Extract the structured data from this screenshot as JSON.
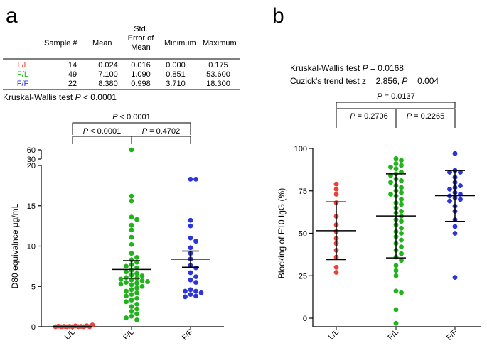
{
  "panel_a": {
    "letter": "a",
    "table": {
      "headers": [
        "",
        "Sample #",
        "Mean",
        "Std.\nError of\nMean",
        "Minimum",
        "Maximum"
      ],
      "rows": [
        {
          "label": "L/L",
          "color": "#e8413a",
          "values": [
            "14",
            "0.024",
            "0.016",
            "0.000",
            "0.175"
          ]
        },
        {
          "label": "F/L",
          "color": "#22b31c",
          "values": [
            "49",
            "7.100",
            "1.090",
            "0.851",
            "53.600"
          ]
        },
        {
          "label": "F/F",
          "color": "#2b35d8",
          "values": [
            "22",
            "8.380",
            "0.998",
            "3.710",
            "18.300"
          ]
        }
      ]
    },
    "kruskal_prefix": "Kruskal-Wallis test ",
    "kruskal_p": "P",
    "kruskal_value": " < 0.0001"
  },
  "panel_b": {
    "letter": "b",
    "stat_line1_prefix": "Kruskal-Wallis test ",
    "stat_line1_p": "P",
    "stat_line1_value": " = 0.0168",
    "stat_line2_prefix": "Cuzick's trend test z = 2.856, ",
    "stat_line2_p": "P",
    "stat_line2_value": " = 0.004"
  },
  "chart_data": [
    {
      "type": "scatter",
      "title": "",
      "xlabel": "",
      "ylabel": "D80 equivalnce μg/mL",
      "categories": [
        "L/L",
        "F/L",
        "F/F"
      ],
      "y_ticks": [
        "0",
        "5",
        "10",
        "15",
        "20"
      ],
      "y_break_ticks": [
        "30",
        "60"
      ],
      "ylim": [
        0,
        20
      ],
      "colors": {
        "L/L": "#e8413a",
        "F/L": "#22b31c",
        "F/F": "#2b35d8"
      },
      "series": [
        {
          "category": "L/L",
          "mean": 0.024,
          "error": 0.016,
          "values": [
            0.0,
            0.0,
            0.0,
            0.0,
            0.01,
            0.0,
            0.0,
            0.02,
            0.0,
            0.0,
            0.05,
            0.0,
            0.08,
            0.175
          ]
        },
        {
          "category": "F/L",
          "mean": 7.1,
          "error": 1.09,
          "outlier_above_break": 53.6,
          "values": [
            16.2,
            15.6,
            13.6,
            13.3,
            12.6,
            12.0,
            11.1,
            10.2,
            9.1,
            8.6,
            8.3,
            8.0,
            7.7,
            7.5,
            7.3,
            7.0,
            6.8,
            6.6,
            6.4,
            6.3,
            6.1,
            6.0,
            5.9,
            5.8,
            5.7,
            5.6,
            5.5,
            5.4,
            5.3,
            5.2,
            5.0,
            4.8,
            4.6,
            4.4,
            4.2,
            4.0,
            3.8,
            3.5,
            3.3,
            3.1,
            2.8,
            2.5,
            2.2,
            1.9,
            1.6,
            1.3,
            1.1,
            0.85
          ]
        },
        {
          "category": "F/F",
          "mean": 8.38,
          "error": 0.998,
          "values": [
            18.3,
            18.3,
            13.2,
            12.5,
            11.0,
            10.6,
            9.8,
            9.1,
            8.4,
            7.6,
            7.3,
            6.7,
            6.2,
            5.8,
            5.5,
            4.6,
            4.4,
            4.4,
            4.2,
            4.0,
            3.8,
            3.71
          ]
        }
      ],
      "comparisons": [
        {
          "from": "L/L",
          "to": "F/F",
          "label_p": "P",
          "label_value": " < 0.0001"
        },
        {
          "from": "L/L",
          "to": "F/L",
          "label_p": "P",
          "label_value": " < 0.0001"
        },
        {
          "from": "F/L",
          "to": "F/F",
          "label_p": "P",
          "label_value": " = 0.4702"
        }
      ]
    },
    {
      "type": "scatter",
      "title": "",
      "xlabel": "",
      "ylabel": "Blocking of F10 IgG (%)",
      "categories": [
        "L/L",
        "F/L",
        "F/F"
      ],
      "y_ticks": [
        "0",
        "25",
        "50",
        "75",
        "100"
      ],
      "ylim": [
        -5,
        100
      ],
      "colors": {
        "L/L": "#e8413a",
        "F/L": "#22b31c",
        "F/F": "#2b35d8"
      },
      "series": [
        {
          "category": "L/L",
          "mean": 51.5,
          "sd_low": 34.5,
          "sd_high": 68.5,
          "values": [
            79,
            76,
            73,
            68,
            60,
            55,
            51,
            47,
            44,
            40,
            36,
            30,
            27
          ]
        },
        {
          "category": "F/L",
          "mean": 60.2,
          "sd_low": 35.5,
          "sd_high": 85.0,
          "values": [
            94,
            93,
            91,
            90,
            89,
            88,
            86,
            85,
            84,
            82,
            81,
            80,
            78,
            77,
            75,
            74,
            73,
            72,
            70,
            68,
            67,
            65,
            63,
            62,
            60,
            58,
            57,
            55,
            53,
            51,
            50,
            48,
            46,
            44,
            42,
            40,
            38,
            36,
            34,
            31,
            28,
            25,
            16,
            15,
            5,
            -3
          ]
        },
        {
          "category": "F/F",
          "mean": 72.2,
          "sd_low": 57.0,
          "sd_high": 87.0,
          "values": [
            97,
            87,
            86,
            86,
            83,
            80,
            78,
            77,
            76,
            74,
            73,
            72,
            71,
            70,
            69,
            66,
            63,
            58,
            54,
            50,
            24
          ]
        }
      ],
      "comparisons": [
        {
          "from": "L/L",
          "to": "F/F",
          "label_p": "P",
          "label_value": " = 0.0137"
        },
        {
          "from": "L/L",
          "to": "F/L",
          "label_p": "P",
          "label_value": " = 0.2706"
        },
        {
          "from": "F/L",
          "to": "F/F",
          "label_p": "P",
          "label_value": " = 0.2265"
        }
      ]
    }
  ]
}
